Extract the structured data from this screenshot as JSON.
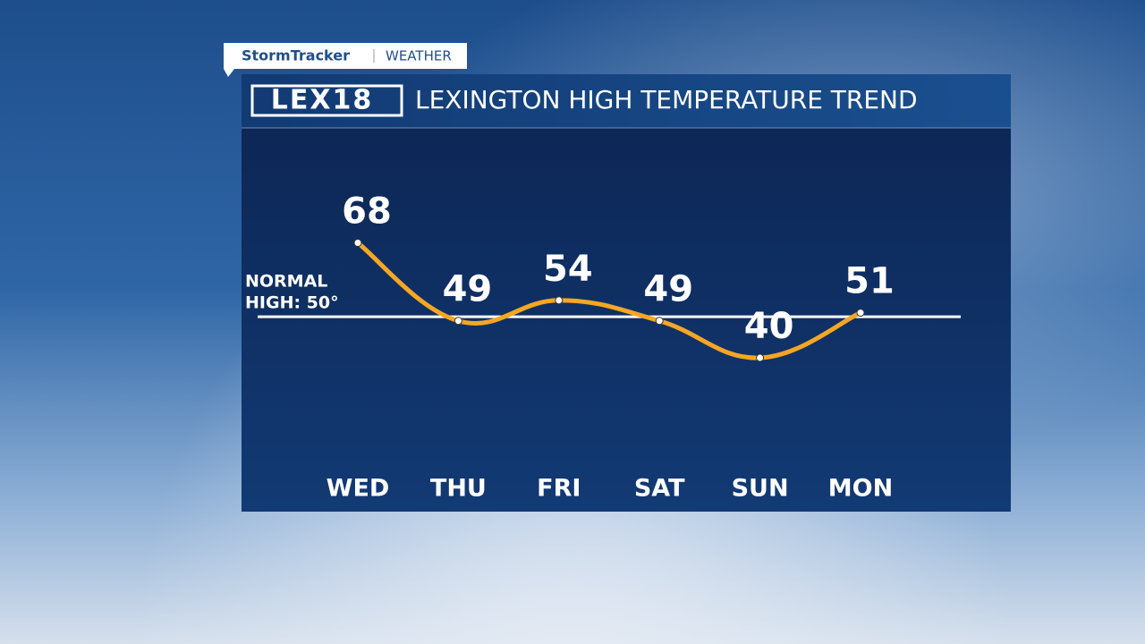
{
  "chart_data": {
    "type": "line",
    "brand": {
      "show": "StormTracker",
      "section": "WEATHER",
      "logo": "LEX18"
    },
    "title": "LEXINGTON HIGH TEMPERATURE TREND",
    "categories": [
      "WED",
      "THU",
      "FRI",
      "SAT",
      "SUN",
      "MON"
    ],
    "values": [
      68,
      49,
      54,
      49,
      40,
      51
    ],
    "color": "#f5a623",
    "ylim": [
      13,
      96
    ],
    "normal_high": {
      "label_lines": [
        "NORMAL",
        "HIGH: 50°"
      ],
      "value": 50
    }
  }
}
